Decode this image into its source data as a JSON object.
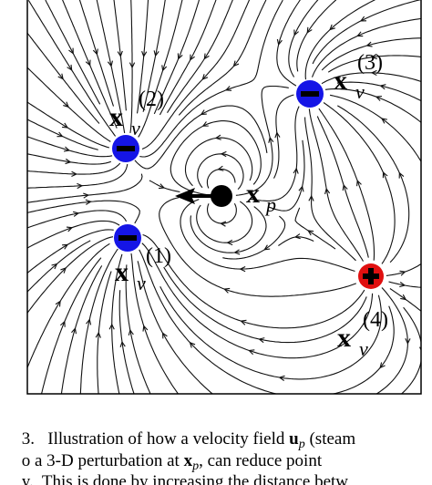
{
  "figure": {
    "source_labels": [
      {
        "symbol": "x",
        "subscript": "v",
        "superscript": "(1)"
      },
      {
        "symbol": "x",
        "subscript": "v",
        "superscript": "(2)"
      },
      {
        "symbol": "x",
        "subscript": "v",
        "superscript": "(3)"
      },
      {
        "symbol": "x",
        "subscript": "v",
        "superscript": "(4)"
      }
    ],
    "point_label": {
      "symbol": "x",
      "subscript": "p"
    }
  },
  "caption": {
    "lines": [
      {
        "text": "3.   Illustration of how a velocity field ",
        "symbol": "u",
        "subscript": "p",
        "rest": " (steam"
      },
      {
        "text": "o a 3-D perturbation at ",
        "symbol": "x",
        "subscript": "p",
        "rest": ", can reduce point"
      },
      {
        "text": "y.  This is done by increasing the distance betw"
      }
    ]
  }
}
